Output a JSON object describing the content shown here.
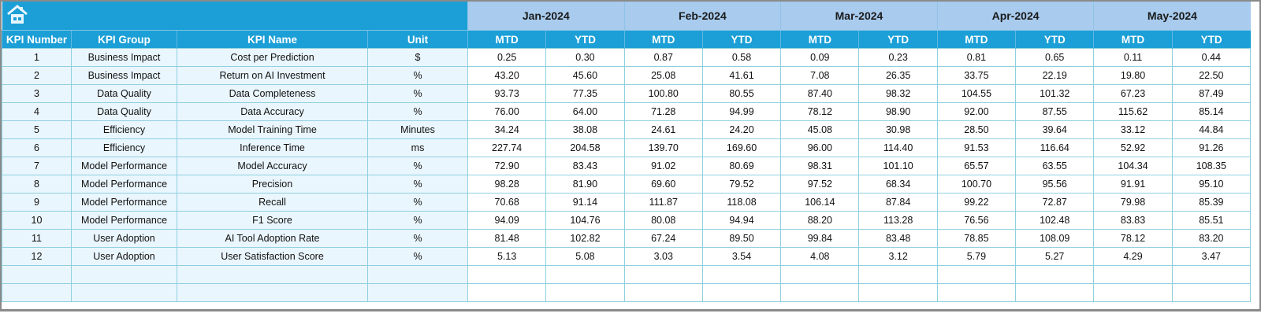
{
  "header": {
    "home_icon": "home-icon",
    "months": [
      "Jan-2024",
      "Feb-2024",
      "Mar-2024",
      "Apr-2024",
      "May-2024"
    ],
    "columns": [
      "KPI Number",
      "KPI Group",
      "KPI Name",
      "Unit"
    ],
    "sub_columns": [
      "MTD",
      "YTD"
    ]
  },
  "colors": {
    "header_blue": "#1b9fd6",
    "month_blue": "#a8cbee",
    "label_cell": "#eaf6fd",
    "grid": "#8fd0e0"
  },
  "rows": [
    {
      "num": "1",
      "group": "Business Impact",
      "name": "Cost per Prediction",
      "unit": "$",
      "values": [
        "0.25",
        "0.30",
        "0.87",
        "0.58",
        "0.09",
        "0.23",
        "0.81",
        "0.65",
        "0.11",
        "0.44"
      ]
    },
    {
      "num": "2",
      "group": "Business Impact",
      "name": "Return on AI Investment",
      "unit": "%",
      "values": [
        "43.20",
        "45.60",
        "25.08",
        "41.61",
        "7.08",
        "26.35",
        "33.75",
        "22.19",
        "19.80",
        "22.50"
      ]
    },
    {
      "num": "3",
      "group": "Data Quality",
      "name": "Data Completeness",
      "unit": "%",
      "values": [
        "93.73",
        "77.35",
        "100.80",
        "80.55",
        "87.40",
        "98.32",
        "104.55",
        "101.32",
        "67.23",
        "87.49"
      ]
    },
    {
      "num": "4",
      "group": "Data Quality",
      "name": "Data Accuracy",
      "unit": "%",
      "values": [
        "76.00",
        "64.00",
        "71.28",
        "94.99",
        "78.12",
        "98.90",
        "92.00",
        "87.55",
        "115.62",
        "85.14"
      ]
    },
    {
      "num": "5",
      "group": "Efficiency",
      "name": "Model Training Time",
      "unit": "Minutes",
      "values": [
        "34.24",
        "38.08",
        "24.61",
        "24.20",
        "45.08",
        "30.98",
        "28.50",
        "39.64",
        "33.12",
        "44.84"
      ]
    },
    {
      "num": "6",
      "group": "Efficiency",
      "name": "Inference Time",
      "unit": "ms",
      "values": [
        "227.74",
        "204.58",
        "139.70",
        "169.60",
        "96.00",
        "114.40",
        "91.53",
        "116.64",
        "52.92",
        "91.26"
      ]
    },
    {
      "num": "7",
      "group": "Model Performance",
      "name": "Model Accuracy",
      "unit": "%",
      "values": [
        "72.90",
        "83.43",
        "91.02",
        "80.69",
        "98.31",
        "101.10",
        "65.57",
        "63.55",
        "104.34",
        "108.35"
      ]
    },
    {
      "num": "8",
      "group": "Model Performance",
      "name": "Precision",
      "unit": "%",
      "values": [
        "98.28",
        "81.90",
        "69.60",
        "79.52",
        "97.52",
        "68.34",
        "100.70",
        "95.56",
        "91.91",
        "95.10"
      ]
    },
    {
      "num": "9",
      "group": "Model Performance",
      "name": "Recall",
      "unit": "%",
      "values": [
        "70.68",
        "91.14",
        "111.87",
        "118.08",
        "106.14",
        "87.84",
        "99.22",
        "72.87",
        "79.98",
        "85.39"
      ]
    },
    {
      "num": "10",
      "group": "Model Performance",
      "name": "F1 Score",
      "unit": "%",
      "values": [
        "94.09",
        "104.76",
        "80.08",
        "94.94",
        "88.20",
        "113.28",
        "76.56",
        "102.48",
        "83.83",
        "85.51"
      ]
    },
    {
      "num": "11",
      "group": "User Adoption",
      "name": "AI Tool Adoption Rate",
      "unit": "%",
      "values": [
        "81.48",
        "102.82",
        "67.24",
        "89.50",
        "99.84",
        "83.48",
        "78.85",
        "108.09",
        "78.12",
        "83.20"
      ]
    },
    {
      "num": "12",
      "group": "User Adoption",
      "name": "User Satisfaction Score",
      "unit": "%",
      "values": [
        "5.13",
        "5.08",
        "3.03",
        "3.54",
        "4.08",
        "3.12",
        "5.79",
        "5.27",
        "4.29",
        "3.47"
      ]
    }
  ],
  "empty_rows": 2
}
